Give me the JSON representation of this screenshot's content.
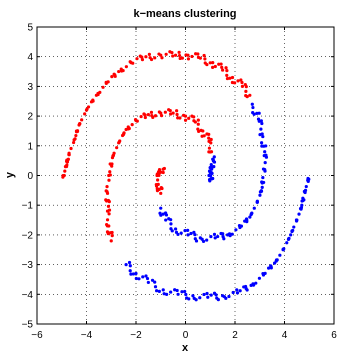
{
  "chart_data": {
    "type": "scatter",
    "title": "k−means clustering",
    "xlabel": "x",
    "ylabel": "y",
    "xlim": [
      -6,
      6
    ],
    "ylim": [
      -5,
      5
    ],
    "xticks": [
      -6,
      -4,
      -2,
      0,
      2,
      4,
      6
    ],
    "yticks": [
      -5,
      -4,
      -3,
      -2,
      -1,
      0,
      1,
      2,
      3,
      4,
      5
    ],
    "xtick_labels": [
      "−6",
      "−4",
      "−2",
      "0",
      "2",
      "4",
      "6"
    ],
    "ytick_labels": [
      "−5",
      "−4",
      "−3",
      "−2",
      "−1",
      "0",
      "1",
      "2",
      "3",
      "4",
      "5"
    ],
    "grid": true,
    "series": [
      {
        "color": "#ff0000",
        "description": "red cluster points along the upper spiral arms",
        "points": [
          [
            -4.9,
            0.0
          ],
          [
            -4.85,
            0.3
          ],
          [
            -4.7,
            0.7
          ],
          [
            -4.5,
            1.2
          ],
          [
            -4.3,
            1.7
          ],
          [
            -4.0,
            2.2
          ],
          [
            -3.6,
            2.7
          ],
          [
            -3.2,
            3.1
          ],
          [
            -2.7,
            3.5
          ],
          [
            -2.2,
            3.8
          ],
          [
            -1.6,
            4.0
          ],
          [
            -1.0,
            4.05
          ],
          [
            -0.4,
            4.05
          ],
          [
            0.1,
            4.05
          ],
          [
            0.6,
            3.95
          ],
          [
            1.1,
            3.8
          ],
          [
            1.5,
            3.55
          ],
          [
            1.9,
            3.3
          ],
          [
            2.3,
            3.0
          ],
          [
            2.6,
            2.7
          ],
          [
            -3.0,
            -2.2
          ],
          [
            -3.1,
            -1.7
          ],
          [
            -3.15,
            -1.2
          ],
          [
            -3.15,
            -0.6
          ],
          [
            -3.1,
            0.0
          ],
          [
            -2.95,
            0.6
          ],
          [
            -2.7,
            1.1
          ],
          [
            -2.4,
            1.55
          ],
          [
            -2.0,
            1.85
          ],
          [
            -1.5,
            2.05
          ],
          [
            -1.0,
            2.1
          ],
          [
            -0.5,
            2.1
          ],
          [
            0.0,
            2.0
          ],
          [
            0.4,
            1.8
          ],
          [
            0.7,
            1.5
          ],
          [
            0.95,
            1.15
          ],
          [
            1.05,
            0.8
          ],
          [
            -1.0,
            -0.6
          ],
          [
            -1.1,
            -0.3
          ],
          [
            -1.15,
            0.0
          ],
          [
            -1.05,
            0.2
          ],
          [
            -0.9,
            0.1
          ]
        ]
      },
      {
        "color": "#0000ff",
        "description": "blue cluster points along the lower spiral arms",
        "points": [
          [
            4.95,
            -0.1
          ],
          [
            4.85,
            -0.5
          ],
          [
            4.7,
            -1.0
          ],
          [
            4.5,
            -1.5
          ],
          [
            4.25,
            -2.0
          ],
          [
            3.95,
            -2.5
          ],
          [
            3.6,
            -2.95
          ],
          [
            3.15,
            -3.35
          ],
          [
            2.65,
            -3.7
          ],
          [
            2.1,
            -3.95
          ],
          [
            1.5,
            -4.05
          ],
          [
            0.9,
            -4.1
          ],
          [
            0.3,
            -4.05
          ],
          [
            -0.3,
            -4.0
          ],
          [
            -0.9,
            -3.85
          ],
          [
            -1.5,
            -3.6
          ],
          [
            -2.0,
            -3.3
          ],
          [
            -2.4,
            -3.0
          ],
          [
            2.7,
            2.4
          ],
          [
            2.95,
            1.9
          ],
          [
            3.1,
            1.4
          ],
          [
            3.2,
            0.8
          ],
          [
            3.2,
            0.2
          ],
          [
            3.1,
            -0.4
          ],
          [
            2.9,
            -0.9
          ],
          [
            2.6,
            -1.4
          ],
          [
            2.2,
            -1.75
          ],
          [
            1.7,
            -2.0
          ],
          [
            1.2,
            -2.1
          ],
          [
            0.6,
            -2.1
          ],
          [
            0.1,
            -2.0
          ],
          [
            -0.4,
            -1.8
          ],
          [
            -0.8,
            -1.5
          ],
          [
            -1.0,
            -1.1
          ],
          [
            1.0,
            0.1
          ],
          [
            1.05,
            0.3
          ],
          [
            1.1,
            0.55
          ],
          [
            1.1,
            -0.1
          ],
          [
            0.95,
            0.0
          ]
        ]
      }
    ]
  }
}
